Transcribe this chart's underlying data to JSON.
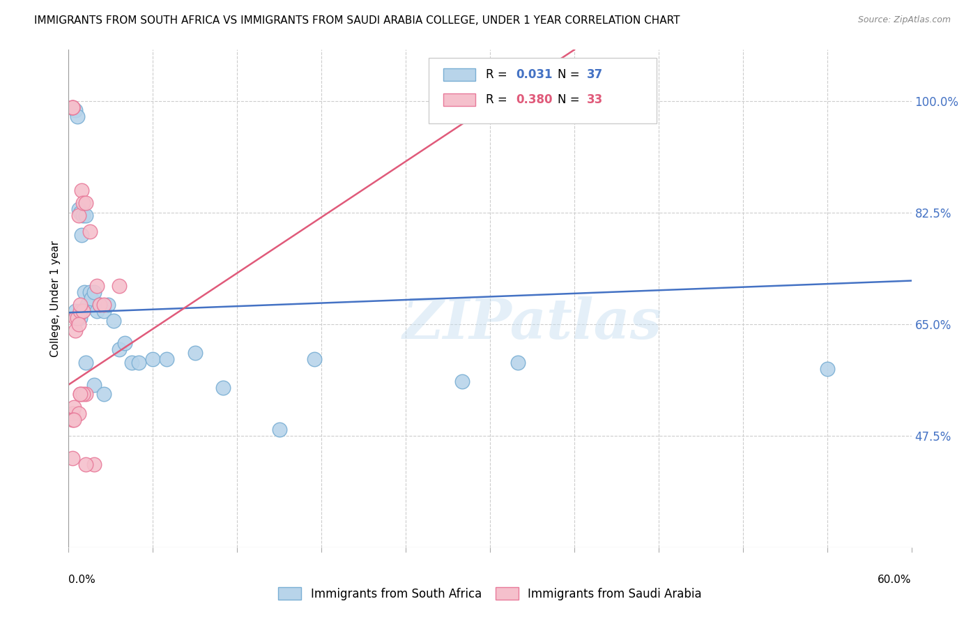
{
  "title": "IMMIGRANTS FROM SOUTH AFRICA VS IMMIGRANTS FROM SAUDI ARABIA COLLEGE, UNDER 1 YEAR CORRELATION CHART",
  "source": "Source: ZipAtlas.com",
  "ylabel": "College, Under 1 year",
  "ylabel_right_ticks": [
    "100.0%",
    "82.5%",
    "65.0%",
    "47.5%"
  ],
  "ylabel_right_vals": [
    1.0,
    0.825,
    0.65,
    0.475
  ],
  "xlim": [
    0.0,
    0.6
  ],
  "ylim": [
    0.3,
    1.08
  ],
  "south_africa_color": "#b8d4ea",
  "south_africa_edge": "#7aafd4",
  "saudi_arabia_color": "#f5c0cc",
  "saudi_arabia_edge": "#e87a9a",
  "trend_sa_color": "#4472c4",
  "trend_saudi_color": "#e05a7a",
  "watermark_text": "ZIPatlas",
  "sa_trend_x0": 0.0,
  "sa_trend_y0": 0.668,
  "sa_trend_x1": 0.6,
  "sa_trend_y1": 0.718,
  "saudi_trend_x0": 0.0,
  "saudi_trend_y0": 0.555,
  "saudi_trend_x1": 0.36,
  "saudi_trend_y1": 1.08,
  "south_africa_x": [
    0.005,
    0.006,
    0.007,
    0.008,
    0.009,
    0.01,
    0.011,
    0.012,
    0.013,
    0.015,
    0.016,
    0.018,
    0.02,
    0.022,
    0.025,
    0.028,
    0.032,
    0.036,
    0.04,
    0.045,
    0.05,
    0.06,
    0.07,
    0.09,
    0.11,
    0.15,
    0.175,
    0.28,
    0.32,
    0.54,
    0.005,
    0.006,
    0.008,
    0.01,
    0.012,
    0.018,
    0.025
  ],
  "south_africa_y": [
    0.985,
    0.975,
    0.83,
    0.825,
    0.79,
    0.82,
    0.7,
    0.82,
    0.68,
    0.7,
    0.69,
    0.7,
    0.67,
    0.68,
    0.67,
    0.68,
    0.655,
    0.61,
    0.62,
    0.59,
    0.59,
    0.595,
    0.595,
    0.605,
    0.55,
    0.485,
    0.595,
    0.56,
    0.59,
    0.58,
    0.67,
    0.66,
    0.66,
    0.67,
    0.59,
    0.555,
    0.54
  ],
  "saudi_arabia_x": [
    0.003,
    0.003,
    0.003,
    0.003,
    0.004,
    0.005,
    0.005,
    0.006,
    0.007,
    0.007,
    0.008,
    0.008,
    0.009,
    0.01,
    0.01,
    0.012,
    0.012,
    0.015,
    0.018,
    0.02,
    0.022,
    0.025,
    0.036,
    0.35,
    0.35,
    0.01,
    0.008,
    0.012,
    0.003,
    0.003,
    0.004,
    0.007,
    0.008
  ],
  "saudi_arabia_y": [
    0.99,
    0.99,
    0.44,
    0.51,
    0.52,
    0.64,
    0.66,
    0.66,
    0.82,
    0.51,
    0.54,
    0.67,
    0.86,
    0.84,
    0.67,
    0.84,
    0.54,
    0.795,
    0.43,
    0.71,
    0.68,
    0.68,
    0.71,
    0.99,
    0.985,
    0.54,
    0.54,
    0.43,
    0.99,
    0.5,
    0.5,
    0.65,
    0.68
  ]
}
